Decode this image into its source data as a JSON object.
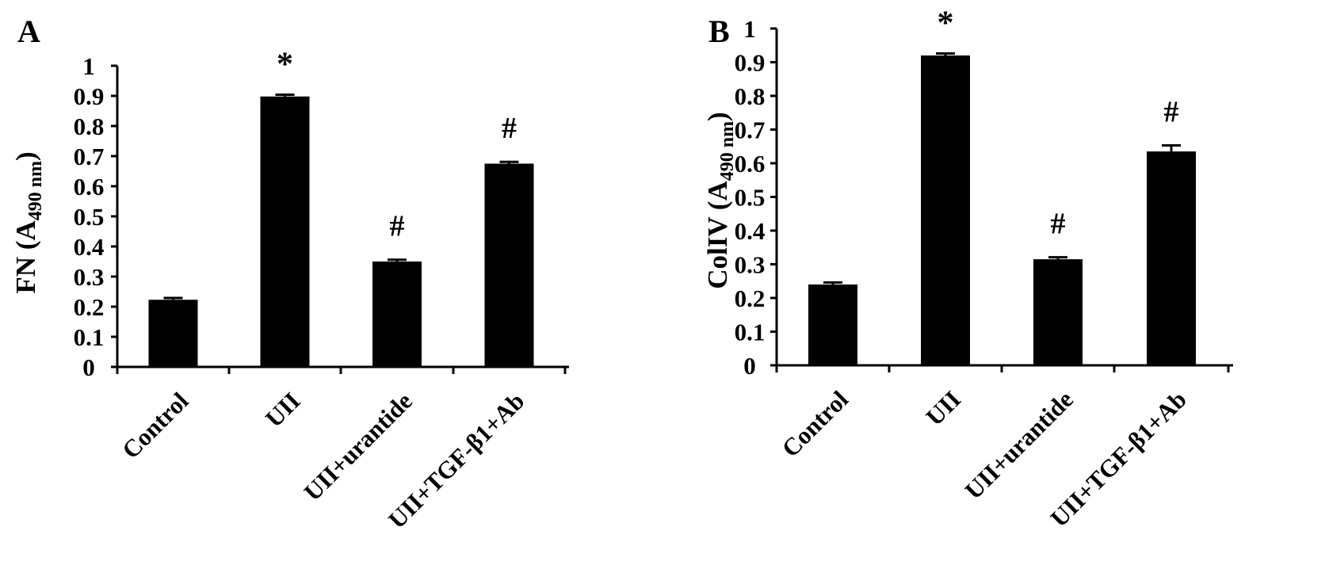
{
  "chart_data": [
    {
      "type": "bar",
      "panel_label": "A",
      "ylabel_main": "FN (A",
      "ylabel_sub": "490 nm",
      "ylabel_close": ")",
      "categories": [
        "Control",
        "UII",
        "UII+urantide",
        "UII+TGF-β1+Ab"
      ],
      "values": [
        0.223,
        0.898,
        0.35,
        0.675
      ],
      "errors": [
        0.006,
        0.006,
        0.006,
        0.006
      ],
      "markers": [
        "",
        "*",
        "#",
        "#"
      ],
      "ylim": [
        0,
        1
      ],
      "yticks": [
        "0",
        "0.1",
        "0.2",
        "0.3",
        "0.4",
        "0.5",
        "0.6",
        "0.7",
        "0.8",
        "0.9",
        "1"
      ]
    },
    {
      "type": "bar",
      "panel_label": "B",
      "ylabel_main": "ColIV (A",
      "ylabel_sub": "490 nm",
      "ylabel_close": ")",
      "categories": [
        "Control",
        "UII",
        "UII+urantide",
        "UII+TGF-β1+Ab"
      ],
      "values": [
        0.24,
        0.92,
        0.315,
        0.635
      ],
      "errors": [
        0.006,
        0.006,
        0.006,
        0.018
      ],
      "markers": [
        "",
        "*",
        "#",
        "#"
      ],
      "ylim": [
        0,
        1
      ],
      "yticks": [
        "0",
        "0.1",
        "0.2",
        "0.3",
        "0.4",
        "0.5",
        "0.6",
        "0.7",
        "0.8",
        "0.9",
        "1"
      ]
    }
  ]
}
